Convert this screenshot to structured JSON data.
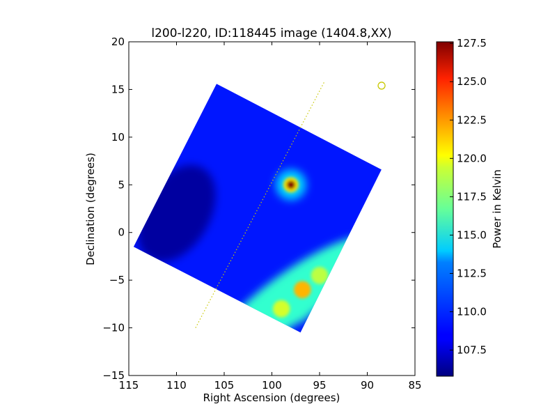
{
  "chart_data": {
    "type": "heatmap",
    "title": "l200-l220, ID:118445 image (1404.8,XX)",
    "xlabel": "Right Ascension (degrees)",
    "ylabel": "Declination (degrees)",
    "xlim": [
      115,
      85
    ],
    "ylim": [
      -15,
      20
    ],
    "x_reversed": true,
    "x_ticks": [
      "115",
      "110",
      "105",
      "100",
      "95",
      "90",
      "85"
    ],
    "x_tick_values": [
      115,
      110,
      105,
      100,
      95,
      90,
      85
    ],
    "y_ticks": [
      "20",
      "15",
      "10",
      "5",
      "0",
      "−5",
      "−10",
      "−15"
    ],
    "y_tick_values": [
      20,
      15,
      10,
      5,
      0,
      -5,
      -10,
      -15
    ],
    "grid": false,
    "colormap": "jet",
    "colorbar": {
      "label": "Power in Kelvin",
      "range": [
        105.8,
        127.6
      ],
      "ticks": [
        "127.5",
        "125.0",
        "122.5",
        "120.0",
        "117.5",
        "115.0",
        "112.5",
        "110.0",
        "107.5"
      ],
      "tick_values": [
        127.5,
        125.0,
        122.5,
        120.0,
        117.5,
        115.0,
        112.5,
        110.0,
        107.5
      ]
    },
    "map_corners_radec": [
      [
        105.8,
        15.6
      ],
      [
        88.5,
        6.6
      ],
      [
        97.0,
        -10.5
      ],
      [
        114.5,
        -1.5
      ]
    ],
    "background_level": 109.0,
    "features": [
      {
        "type": "point_source",
        "ra": 98.0,
        "dec": 5.0,
        "peak": 127.5
      },
      {
        "type": "warm_region",
        "ra": 99.0,
        "dec": -8.0,
        "peak": 118.5
      },
      {
        "type": "warm_region",
        "ra": 96.8,
        "dec": -6.0,
        "peak": 121.0
      },
      {
        "type": "warm_region",
        "ra": 95.0,
        "dec": -4.5,
        "peak": 118.0
      },
      {
        "type": "cold_region",
        "ra": 110.0,
        "dec": 2.0,
        "peak": 106.5
      }
    ],
    "overlay_line": {
      "color": "#c8c800",
      "style": "dotted",
      "start": [
        108.0,
        -10.0
      ],
      "end": [
        94.5,
        15.8
      ]
    },
    "overlay_marker": {
      "color": "#c8c800",
      "shape": "circle",
      "ra": 88.5,
      "dec": 15.4
    }
  }
}
